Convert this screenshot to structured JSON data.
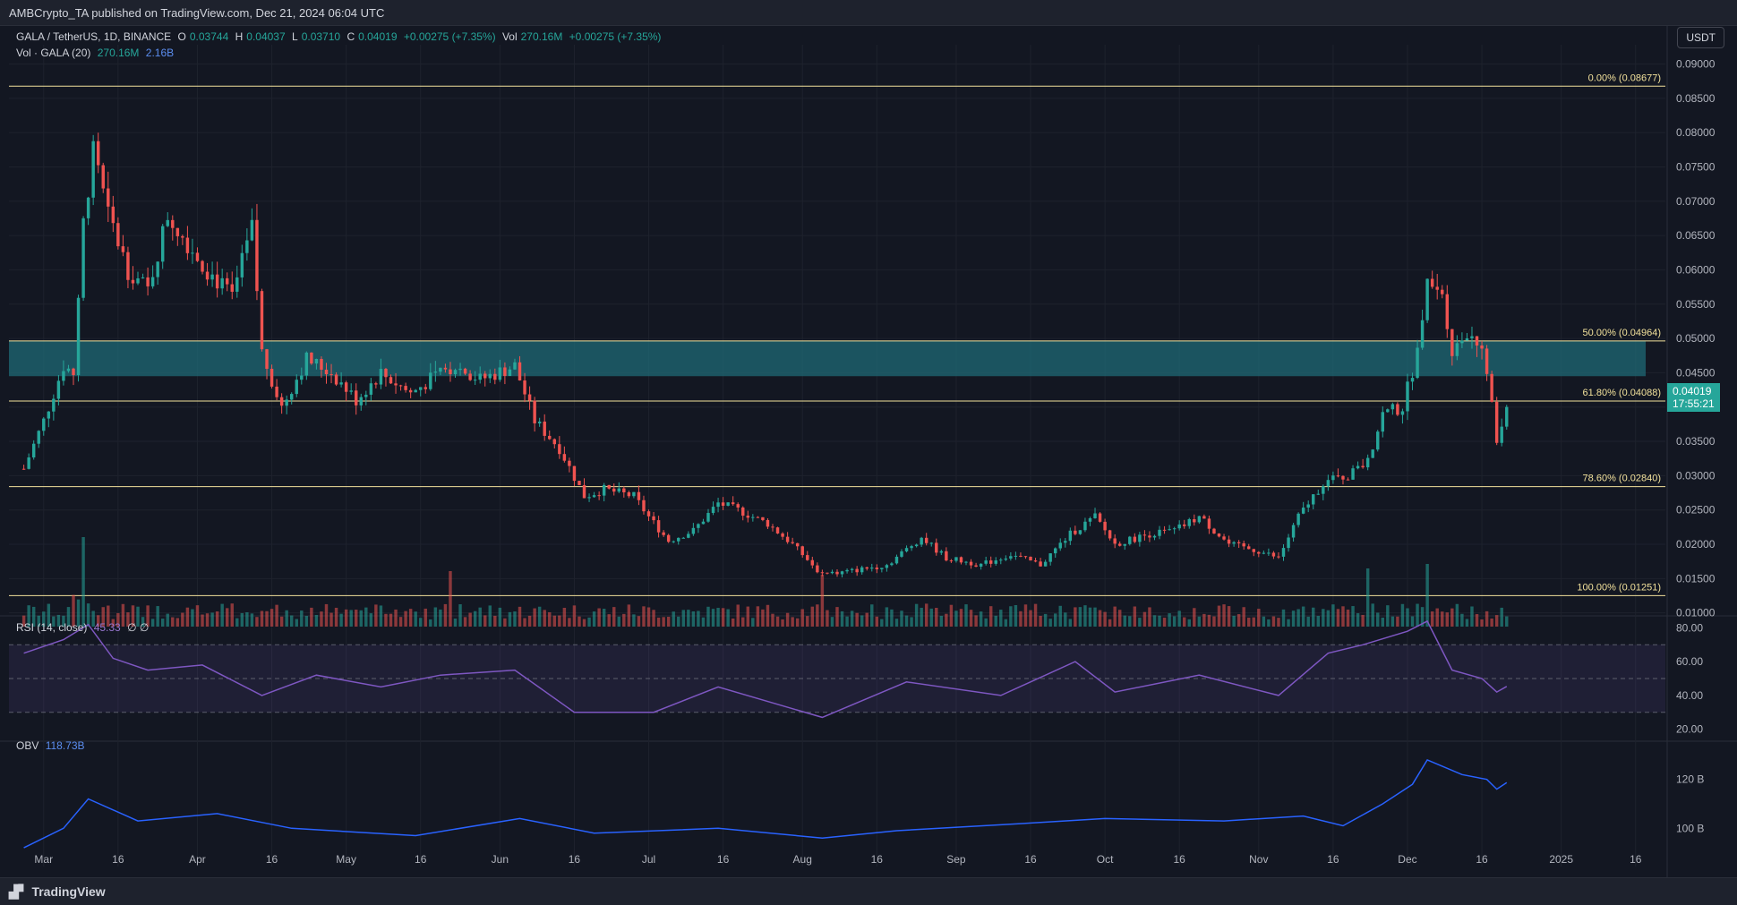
{
  "header": {
    "publisher": "AMBCrypto_TA published on TradingView.com, Dec 21, 2024 06:04 UTC"
  },
  "symbol": {
    "title": "GALA / TetherUS, 1D, BINANCE",
    "open_label": "O",
    "open": "0.03744",
    "high_label": "H",
    "high": "0.04037",
    "low_label": "L",
    "low": "0.03710",
    "close_label": "C",
    "close": "0.04019",
    "change": "+0.00275 (+7.35%)",
    "vol_label": "Vol",
    "vol": "270.16M",
    "vol_change": "+0.00275 (+7.35%)"
  },
  "volume_legend": {
    "label": "Vol · GALA (20)",
    "value": "270.16M",
    "ma": "2.16B"
  },
  "rsi_legend": {
    "label": "RSI (14, close)",
    "value": "45.33",
    "extra": "∅ ∅"
  },
  "obv_legend": {
    "label": "OBV",
    "value": "118.73B"
  },
  "currency": "USDT",
  "current_price": {
    "value": "0.04019",
    "countdown": "17:55:21"
  },
  "footer": {
    "brand": "TradingView"
  },
  "colors": {
    "background": "#131722",
    "up": "#26a69a",
    "down": "#ef5350",
    "fib": "#f2e19b",
    "zone": "#1f6a75",
    "rsi": "#7e57c2",
    "obv": "#2962ff",
    "volume_ma": "#2962ff"
  },
  "chart_data": [
    {
      "type": "candlestick",
      "title": "GALA / TetherUS, 1D, BINANCE",
      "ylim": [
        0.008,
        0.0915
      ],
      "y_ticks": [
        "0.09000",
        "0.08500",
        "0.08000",
        "0.07500",
        "0.07000",
        "0.06500",
        "0.06000",
        "0.05500",
        "0.05000",
        "0.04500",
        "0.04000",
        "0.03500",
        "0.03000",
        "0.02500",
        "0.02000",
        "0.01500",
        "0.01000"
      ],
      "x_ticks": [
        "Mar",
        "16",
        "Apr",
        "16",
        "May",
        "16",
        "Jun",
        "16",
        "Jul",
        "16",
        "Aug",
        "16",
        "Sep",
        "16",
        "Oct",
        "16",
        "Nov",
        "16",
        "Dec",
        "16",
        "2025",
        "16"
      ],
      "fib_levels": [
        {
          "label": "0.00% (0.08677)",
          "price": 0.08677
        },
        {
          "label": "50.00% (0.04964)",
          "price": 0.04964
        },
        {
          "label": "61.80% (0.04088)",
          "price": 0.04088
        },
        {
          "label": "78.60% (0.02840)",
          "price": 0.0284
        },
        {
          "label": "100.00% (0.01251)",
          "price": 0.01251
        }
      ],
      "zone": {
        "low": 0.0445,
        "high": 0.04964
      },
      "close_path": [
        [
          "2024-02-26",
          0.031
        ],
        [
          "2024-03-01",
          0.038
        ],
        [
          "2024-03-05",
          0.046
        ],
        [
          "2024-03-07",
          0.045
        ],
        [
          "2024-03-09",
          0.067
        ],
        [
          "2024-03-11",
          0.077
        ],
        [
          "2024-03-14",
          0.068
        ],
        [
          "2024-03-18",
          0.06
        ],
        [
          "2024-03-22",
          0.057
        ],
        [
          "2024-03-26",
          0.068
        ],
        [
          "2024-03-30",
          0.064
        ],
        [
          "2024-04-03",
          0.06
        ],
        [
          "2024-04-08",
          0.056
        ],
        [
          "2024-04-12",
          0.066
        ],
        [
          "2024-04-14",
          0.048
        ],
        [
          "2024-04-18",
          0.04
        ],
        [
          "2024-04-23",
          0.047
        ],
        [
          "2024-04-28",
          0.045
        ],
        [
          "2024-05-03",
          0.041
        ],
        [
          "2024-05-08",
          0.045
        ],
        [
          "2024-05-14",
          0.042
        ],
        [
          "2024-05-18",
          0.044
        ],
        [
          "2024-05-23",
          0.046
        ],
        [
          "2024-05-28",
          0.044
        ],
        [
          "2024-06-04",
          0.046
        ],
        [
          "2024-06-08",
          0.038
        ],
        [
          "2024-06-13",
          0.034
        ],
        [
          "2024-06-18",
          0.027
        ],
        [
          "2024-06-22",
          0.028
        ],
        [
          "2024-06-28",
          0.027
        ],
        [
          "2024-07-01",
          0.024
        ],
        [
          "2024-07-05",
          0.0205
        ],
        [
          "2024-07-10",
          0.022
        ],
        [
          "2024-07-15",
          0.026
        ],
        [
          "2024-07-19",
          0.025
        ],
        [
          "2024-07-25",
          0.023
        ],
        [
          "2024-07-30",
          0.02
        ],
        [
          "2024-08-05",
          0.0155
        ],
        [
          "2024-08-10",
          0.016
        ],
        [
          "2024-08-18",
          0.017
        ],
        [
          "2024-08-25",
          0.021
        ],
        [
          "2024-08-30",
          0.018
        ],
        [
          "2024-09-06",
          0.017
        ],
        [
          "2024-09-12",
          0.0185
        ],
        [
          "2024-09-18",
          0.017
        ],
        [
          "2024-09-24",
          0.0215
        ],
        [
          "2024-09-29",
          0.024
        ],
        [
          "2024-10-03",
          0.02
        ],
        [
          "2024-10-10",
          0.0215
        ],
        [
          "2024-10-15",
          0.022
        ],
        [
          "2024-10-20",
          0.024
        ],
        [
          "2024-10-26",
          0.02
        ],
        [
          "2024-11-01",
          0.019
        ],
        [
          "2024-11-05",
          0.018
        ],
        [
          "2024-11-09",
          0.024
        ],
        [
          "2024-11-14",
          0.029
        ],
        [
          "2024-11-19",
          0.03
        ],
        [
          "2024-11-23",
          0.032
        ],
        [
          "2024-11-26",
          0.039
        ],
        [
          "2024-11-30",
          0.04
        ],
        [
          "2024-12-03",
          0.048
        ],
        [
          "2024-12-05",
          0.06
        ],
        [
          "2024-12-08",
          0.057
        ],
        [
          "2024-12-10",
          0.048
        ],
        [
          "2024-12-13",
          0.051
        ],
        [
          "2024-12-15",
          0.05
        ],
        [
          "2024-12-17",
          0.045
        ],
        [
          "2024-12-19",
          0.035
        ],
        [
          "2024-12-21",
          0.04019
        ]
      ]
    },
    {
      "type": "bar",
      "title": "Vol · GALA (20)",
      "volume_spikes": [
        [
          "2024-03-09",
          1.0
        ],
        [
          "2024-05-22",
          0.62
        ],
        [
          "2024-08-05",
          0.58
        ],
        [
          "2024-11-23",
          0.65
        ],
        [
          "2024-12-05",
          0.7
        ]
      ]
    },
    {
      "type": "line",
      "title": "RSI (14, close)",
      "ylim": [
        15,
        85
      ],
      "y_ticks": [
        "80.00",
        "60.00",
        "40.00",
        "20.00"
      ],
      "bands": [
        30,
        50,
        70
      ],
      "points": [
        [
          "2024-02-26",
          65
        ],
        [
          "2024-03-05",
          73
        ],
        [
          "2024-03-10",
          82
        ],
        [
          "2024-03-15",
          62
        ],
        [
          "2024-03-22",
          55
        ],
        [
          "2024-04-02",
          58
        ],
        [
          "2024-04-14",
          40
        ],
        [
          "2024-04-25",
          52
        ],
        [
          "2024-05-08",
          45
        ],
        [
          "2024-05-20",
          52
        ],
        [
          "2024-06-04",
          55
        ],
        [
          "2024-06-16",
          30
        ],
        [
          "2024-07-02",
          30
        ],
        [
          "2024-07-15",
          45
        ],
        [
          "2024-08-05",
          27
        ],
        [
          "2024-08-22",
          48
        ],
        [
          "2024-09-10",
          40
        ],
        [
          "2024-09-25",
          60
        ],
        [
          "2024-10-03",
          42
        ],
        [
          "2024-10-20",
          52
        ],
        [
          "2024-11-05",
          40
        ],
        [
          "2024-11-15",
          65
        ],
        [
          "2024-11-22",
          70
        ],
        [
          "2024-12-01",
          78
        ],
        [
          "2024-12-05",
          84
        ],
        [
          "2024-12-10",
          55
        ],
        [
          "2024-12-16",
          50
        ],
        [
          "2024-12-19",
          42
        ],
        [
          "2024-12-21",
          45.33
        ]
      ]
    },
    {
      "type": "line",
      "title": "OBV",
      "y_ticks": [
        "120 B",
        "100 B"
      ],
      "points": [
        [
          "2024-02-26",
          92
        ],
        [
          "2024-03-05",
          100
        ],
        [
          "2024-03-10",
          112
        ],
        [
          "2024-03-20",
          103
        ],
        [
          "2024-04-05",
          106
        ],
        [
          "2024-04-20",
          100
        ],
        [
          "2024-05-15",
          97
        ],
        [
          "2024-06-05",
          104
        ],
        [
          "2024-06-20",
          98
        ],
        [
          "2024-07-15",
          100
        ],
        [
          "2024-08-05",
          96
        ],
        [
          "2024-08-20",
          99
        ],
        [
          "2024-09-15",
          102
        ],
        [
          "2024-10-01",
          104
        ],
        [
          "2024-10-25",
          103
        ],
        [
          "2024-11-10",
          105
        ],
        [
          "2024-11-18",
          101
        ],
        [
          "2024-11-26",
          110
        ],
        [
          "2024-12-02",
          118
        ],
        [
          "2024-12-05",
          128
        ],
        [
          "2024-12-12",
          122
        ],
        [
          "2024-12-17",
          120
        ],
        [
          "2024-12-19",
          116
        ],
        [
          "2024-12-21",
          118.73
        ]
      ]
    }
  ]
}
